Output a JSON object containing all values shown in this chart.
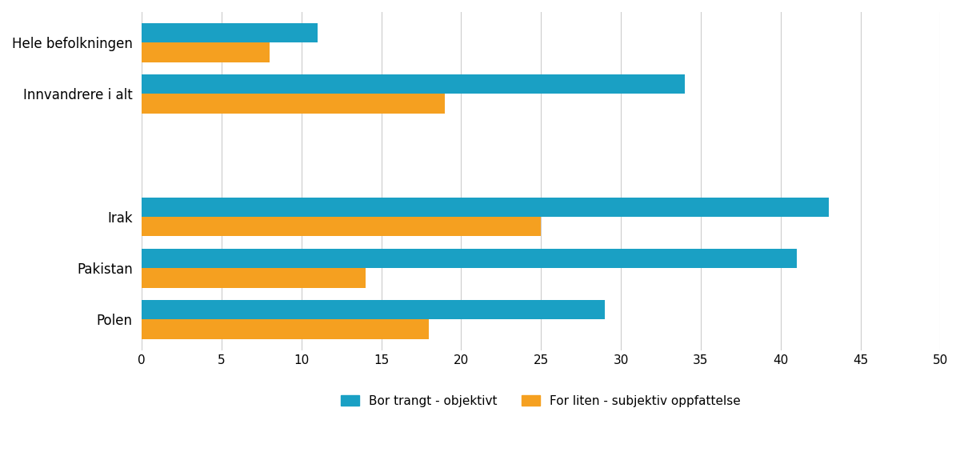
{
  "categories": [
    "Polen",
    "Pakistan",
    "Irak",
    "",
    "Innvandrere i alt",
    "Hele befolkningen"
  ],
  "bor_trangt": [
    29,
    41,
    43,
    0,
    34,
    11
  ],
  "for_liten": [
    18,
    14,
    25,
    0,
    19,
    8
  ],
  "color_blue": "#1aA0C4",
  "color_orange": "#F5A020",
  "xlim": [
    0,
    50
  ],
  "xticks": [
    0,
    5,
    10,
    15,
    20,
    25,
    30,
    35,
    40,
    45,
    50
  ],
  "legend_label_blue": "Bor trangt - objektivt",
  "legend_label_orange": "For liten - subjektiv oppfattelse",
  "bar_height": 0.38,
  "figsize": [
    12.0,
    5.65
  ],
  "dpi": 100,
  "background_color": "#ffffff",
  "grid_color": "#cccccc",
  "y_positions": [
    0,
    1,
    2,
    3.4,
    4.4,
    5.4
  ]
}
